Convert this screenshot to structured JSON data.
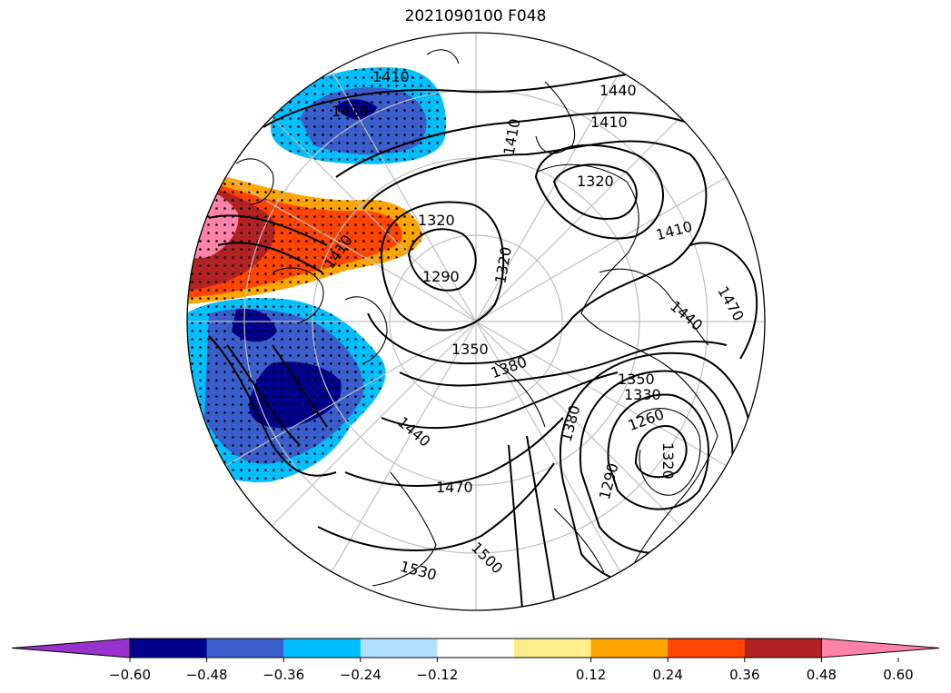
{
  "title": "2021090100 F048",
  "contour_labels": [
    "1290",
    "1320",
    "1320",
    "1320",
    "1350",
    "1350",
    "1380",
    "1380",
    "1410",
    "1410",
    "1410",
    "1410",
    "1410",
    "1440",
    "1440",
    "1440",
    "1470",
    "1470",
    "1500",
    "1530",
    "1260",
    "1290",
    "1320",
    "1330",
    "1410"
  ],
  "colorbar": {
    "ticks": [
      "−0.60",
      "−0.48",
      "−0.36",
      "−0.24",
      "−0.12",
      "0.12",
      "0.24",
      "0.36",
      "0.48",
      "0.60"
    ],
    "colors": [
      "#9932cc",
      "#00008b",
      "#3a5fcd",
      "#00bfff",
      "#b0e2ff",
      "#ffffff",
      "#ffec8b",
      "#ffa500",
      "#ff4500",
      "#b22222",
      "#ff82ab"
    ]
  },
  "anomaly_colors": {
    "strong_negative": "#00008b",
    "negative": "#3a5fcd",
    "weak_negative": "#00bfff",
    "weak_positive": "#ffa500",
    "positive": "#ff4500",
    "strong_positive": "#b22222",
    "very_strong_positive": "#ff82ab"
  }
}
